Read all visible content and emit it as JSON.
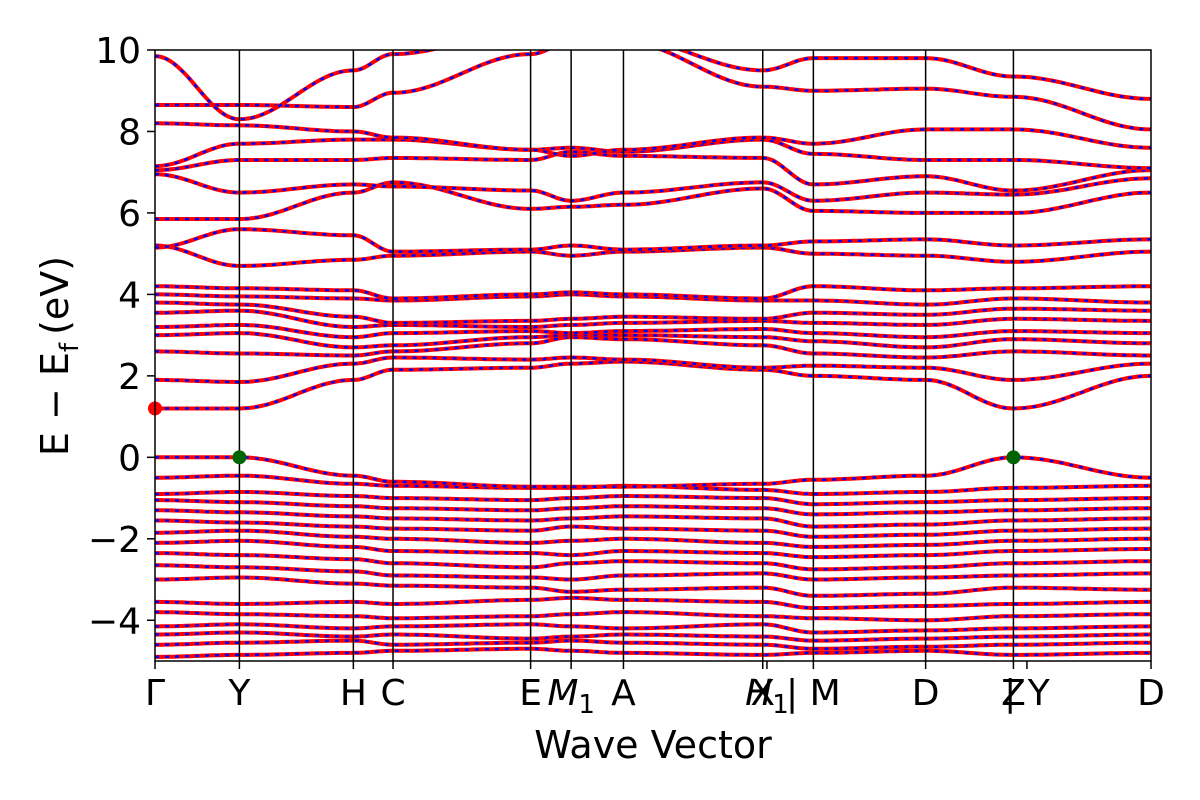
{
  "chart_data": {
    "type": "line",
    "xlabel": "Wave Vector",
    "ylabel": "E − E",
    "ylabel_sub": "f",
    "ylabel_unit": "(eV)",
    "ylim": [
      -5,
      10
    ],
    "yticks": [
      -4,
      -2,
      0,
      2,
      4,
      6,
      8,
      10
    ],
    "xlim": [
      0,
      11.8
    ],
    "kpoints": [
      {
        "label": "Γ",
        "x": 0.0
      },
      {
        "label": "Y",
        "x": 1.0
      },
      {
        "label": "H",
        "x": 2.35
      },
      {
        "label": "C",
        "x": 2.82
      },
      {
        "label": "E",
        "x": 4.45
      },
      {
        "label": "M",
        "sub": "1",
        "x": 4.93
      },
      {
        "label": "A",
        "x": 5.55
      },
      {
        "label": "X",
        "x": 7.2
      },
      {
        "label": "H",
        "sub": "1",
        "x": 7.25
      },
      {
        "label": "| M",
        "x": 7.8
      },
      {
        "label": "D",
        "x": 9.13
      },
      {
        "label": "Z",
        "x": 10.17
      },
      {
        "label": "| Y",
        "x": 10.33
      },
      {
        "label": "D",
        "x": 11.8
      }
    ],
    "vlines": [
      1.0,
      2.35,
      2.82,
      4.45,
      4.93,
      5.55,
      7.2,
      7.8,
      9.13,
      10.17
    ],
    "segments": [
      [
        0,
        1.0
      ],
      [
        1.0,
        2.35
      ],
      [
        2.35,
        2.82
      ],
      [
        2.82,
        4.45
      ],
      [
        4.45,
        4.93
      ],
      [
        4.93,
        5.55
      ],
      [
        5.55,
        7.2
      ],
      [
        7.2,
        7.8
      ],
      [
        7.8,
        9.13
      ],
      [
        9.13,
        10.17
      ],
      [
        10.17,
        11.8
      ]
    ],
    "bands_at_nodes": [
      [
        -4.9,
        -4.85,
        -4.8,
        -4.75,
        -4.7,
        -4.75,
        -4.8,
        -4.85,
        -4.8,
        -4.75,
        -4.85,
        -4.8
      ],
      [
        -4.6,
        -4.55,
        -4.5,
        -4.6,
        -4.55,
        -4.5,
        -4.55,
        -4.6,
        -4.7,
        -4.65,
        -4.6,
        -4.55
      ],
      [
        -4.35,
        -4.3,
        -4.4,
        -4.35,
        -4.45,
        -4.4,
        -4.35,
        -4.4,
        -4.5,
        -4.45,
        -4.4,
        -4.35
      ],
      [
        -4.15,
        -4.1,
        -4.2,
        -4.15,
        -4.1,
        -4.15,
        -4.2,
        -4.1,
        -4.3,
        -4.25,
        -4.2,
        -4.15
      ],
      [
        -3.8,
        -3.85,
        -3.9,
        -3.95,
        -3.9,
        -3.85,
        -3.8,
        -3.9,
        -3.95,
        -4.0,
        -3.9,
        -3.85
      ],
      [
        -3.55,
        -3.6,
        -3.55,
        -3.6,
        -3.5,
        -3.45,
        -3.5,
        -3.55,
        -3.7,
        -3.65,
        -3.6,
        -3.55
      ],
      [
        -3.0,
        -2.95,
        -3.1,
        -3.15,
        -3.2,
        -3.3,
        -3.25,
        -3.2,
        -3.4,
        -3.35,
        -3.2,
        -3.25
      ],
      [
        -2.65,
        -2.7,
        -2.8,
        -2.9,
        -2.95,
        -3.0,
        -2.9,
        -2.85,
        -3.0,
        -2.95,
        -2.9,
        -2.85
      ],
      [
        -2.35,
        -2.4,
        -2.5,
        -2.6,
        -2.7,
        -2.6,
        -2.55,
        -2.6,
        -2.75,
        -2.7,
        -2.6,
        -2.55
      ],
      [
        -2.1,
        -2.05,
        -2.2,
        -2.3,
        -2.35,
        -2.4,
        -2.3,
        -2.35,
        -2.45,
        -2.4,
        -2.3,
        -2.25
      ],
      [
        -1.85,
        -1.8,
        -1.95,
        -2.0,
        -2.1,
        -2.05,
        -2.0,
        -2.1,
        -2.2,
        -2.15,
        -2.05,
        -2.0
      ],
      [
        -1.55,
        -1.6,
        -1.7,
        -1.75,
        -1.8,
        -1.7,
        -1.75,
        -1.8,
        -1.95,
        -1.9,
        -1.8,
        -1.75
      ],
      [
        -1.3,
        -1.35,
        -1.45,
        -1.5,
        -1.55,
        -1.5,
        -1.45,
        -1.5,
        -1.7,
        -1.65,
        -1.55,
        -1.5
      ],
      [
        -1.05,
        -1.1,
        -1.2,
        -1.25,
        -1.3,
        -1.25,
        -1.2,
        -1.25,
        -1.4,
        -1.35,
        -1.3,
        -1.25
      ],
      [
        -0.9,
        -0.85,
        -0.95,
        -1.0,
        -1.05,
        -1.0,
        -0.95,
        -1.0,
        -1.15,
        -1.1,
        -1.05,
        -1.0
      ],
      [
        -0.5,
        -0.45,
        -0.65,
        -0.7,
        -0.75,
        -0.75,
        -0.7,
        -0.8,
        -0.9,
        -0.85,
        -0.75,
        -0.7
      ],
      [
        0.0,
        0.0,
        -0.45,
        -0.6,
        -0.72,
        -0.72,
        -0.72,
        -0.65,
        -0.55,
        -0.45,
        0.0,
        -0.5
      ],
      [
        1.2,
        1.2,
        1.9,
        2.15,
        2.2,
        2.3,
        2.35,
        2.15,
        2.0,
        1.9,
        1.2,
        2.0
      ],
      [
        1.9,
        1.85,
        2.3,
        2.45,
        2.4,
        2.45,
        2.4,
        2.2,
        2.25,
        2.2,
        1.9,
        2.3
      ],
      [
        2.6,
        2.55,
        2.5,
        2.6,
        2.8,
        2.95,
        2.9,
        2.75,
        2.55,
        2.45,
        2.6,
        2.5
      ],
      [
        3.0,
        3.05,
        2.7,
        2.75,
        2.95,
        3.0,
        3.0,
        2.95,
        2.85,
        2.7,
        2.9,
        2.8
      ],
      [
        3.2,
        3.25,
        2.95,
        3.05,
        3.1,
        3.05,
        3.1,
        3.15,
        3.05,
        2.95,
        3.1,
        3.05
      ],
      [
        3.55,
        3.6,
        3.2,
        3.25,
        3.2,
        3.25,
        3.3,
        3.35,
        3.3,
        3.25,
        3.4,
        3.35
      ],
      [
        3.8,
        3.75,
        3.45,
        3.3,
        3.35,
        3.4,
        3.45,
        3.4,
        3.55,
        3.5,
        3.65,
        3.6
      ],
      [
        4.0,
        3.95,
        3.9,
        3.85,
        3.95,
        4.0,
        3.95,
        3.85,
        3.85,
        3.75,
        3.9,
        3.8
      ],
      [
        4.2,
        4.15,
        4.1,
        3.9,
        4.0,
        4.05,
        4.0,
        3.9,
        4.2,
        4.1,
        4.15,
        4.2
      ],
      [
        5.2,
        4.7,
        4.85,
        4.95,
        5.05,
        4.95,
        5.05,
        5.15,
        5.0,
        4.95,
        4.8,
        5.05
      ],
      [
        5.15,
        5.6,
        5.45,
        5.05,
        5.1,
        5.2,
        5.1,
        5.2,
        5.3,
        5.35,
        5.2,
        5.35
      ],
      [
        5.85,
        5.85,
        6.5,
        6.75,
        6.1,
        6.15,
        6.2,
        6.6,
        6.05,
        6.0,
        6.0,
        6.5
      ],
      [
        6.95,
        6.5,
        6.7,
        6.65,
        6.55,
        6.3,
        6.5,
        6.75,
        6.3,
        6.5,
        6.45,
        6.85
      ],
      [
        7.05,
        7.3,
        7.3,
        7.35,
        7.3,
        7.5,
        7.4,
        7.35,
        6.7,
        6.9,
        6.55,
        7.05
      ],
      [
        7.15,
        7.7,
        7.8,
        7.8,
        7.55,
        7.6,
        7.5,
        7.8,
        7.45,
        7.3,
        7.3,
        7.1
      ],
      [
        8.2,
        8.15,
        8.0,
        7.85,
        7.55,
        7.4,
        7.55,
        7.85,
        7.7,
        8.05,
        8.05,
        7.6
      ],
      [
        8.65,
        8.65,
        8.6,
        8.95,
        9.9,
        10.2,
        10.2,
        9.1,
        9.0,
        9.05,
        8.85,
        8.05
      ],
      [
        9.85,
        8.3,
        9.5,
        9.9,
        10.5,
        10.6,
        10.3,
        9.5,
        9.8,
        9.8,
        9.35,
        8.8
      ]
    ],
    "cbm": {
      "x": 0.0,
      "y": 1.2
    },
    "vbm": [
      {
        "x": 1.0,
        "y": 0.0
      },
      {
        "x": 10.17,
        "y": 0.0
      }
    ],
    "colors": {
      "band_solid": "#ff0000",
      "band_dash": "#0000ff",
      "cbm": "#ff0000",
      "vbm": "#006400",
      "vline": "#000000"
    }
  }
}
